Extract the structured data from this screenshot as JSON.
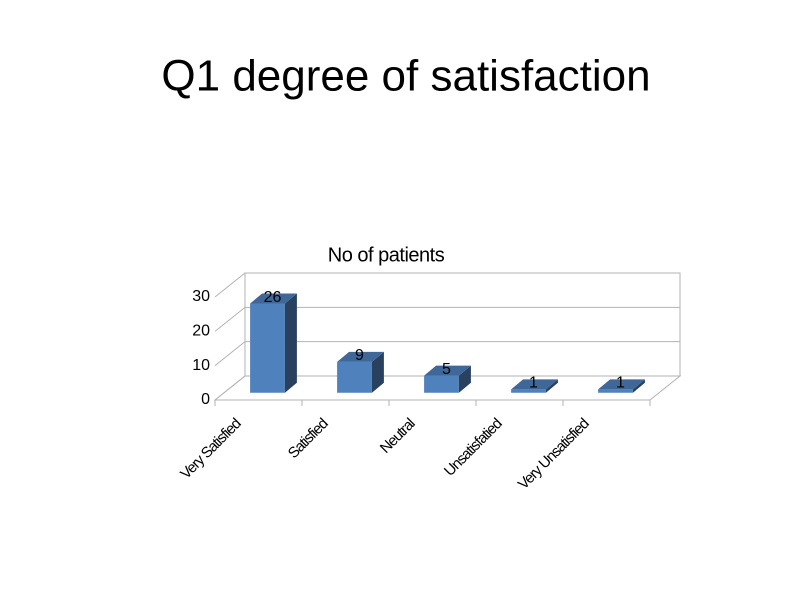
{
  "chart_data": {
    "type": "bar3d",
    "title": "Q1 degree of satisfaction",
    "subtitle": "No of patients",
    "categories": [
      "Very Satisfied",
      "Satisfied",
      "Neutral",
      "Unsatisfatied",
      "Very Unsatisfied"
    ],
    "values": [
      26,
      9,
      5,
      1,
      1
    ],
    "color": "#4f81bd",
    "ylim": [
      0,
      30
    ],
    "yticks": [
      0,
      10,
      20,
      30
    ],
    "grid": true
  }
}
